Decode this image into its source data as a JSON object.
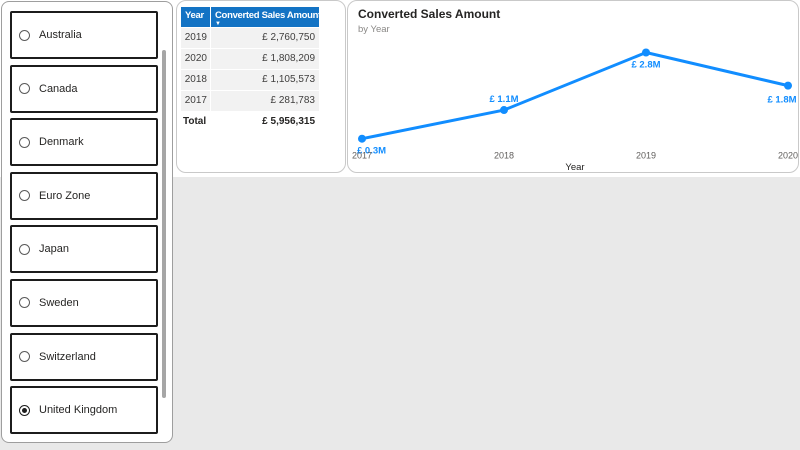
{
  "slicer": {
    "items": [
      {
        "label": "Australia",
        "selected": false
      },
      {
        "label": "Canada",
        "selected": false
      },
      {
        "label": "Denmark",
        "selected": false
      },
      {
        "label": "Euro Zone",
        "selected": false
      },
      {
        "label": "Japan",
        "selected": false
      },
      {
        "label": "Sweden",
        "selected": false
      },
      {
        "label": "Switzerland",
        "selected": false
      },
      {
        "label": "United Kingdom",
        "selected": true
      }
    ]
  },
  "table": {
    "columns": [
      "Year",
      "Converted Sales Amount"
    ],
    "sort": {
      "column": "Converted Sales Amount",
      "direction": "desc",
      "icon": "▼"
    },
    "rows": [
      [
        "2019",
        "£ 2,760,750"
      ],
      [
        "2020",
        "£ 1,808,209"
      ],
      [
        "2018",
        "£ 1,105,573"
      ],
      [
        "2017",
        "£ 281,783"
      ]
    ],
    "total": {
      "label": "Total",
      "value": "£ 5,956,315"
    }
  },
  "chart_data": {
    "type": "line",
    "title": "Converted Sales Amount",
    "subtitle": "by Year",
    "xlabel": "Year",
    "x": [
      "2017",
      "2018",
      "2019",
      "2020"
    ],
    "series": [
      {
        "name": "Converted Sales Amount",
        "values": [
          281783,
          1105573,
          2760750,
          1808209
        ]
      }
    ],
    "point_labels": [
      "£ 0.3M",
      "£ 1.1M",
      "£ 2.8M",
      "£ 1.8M"
    ],
    "ylim": [
      0,
      3100000
    ],
    "grid": false,
    "legend": "none",
    "line_color": "#118DFF"
  },
  "colors": {
    "accent": "#118DFF",
    "table_header": "#1373C4",
    "page_background": "#E9E9E9",
    "card_border": "#C9C9C9"
  }
}
